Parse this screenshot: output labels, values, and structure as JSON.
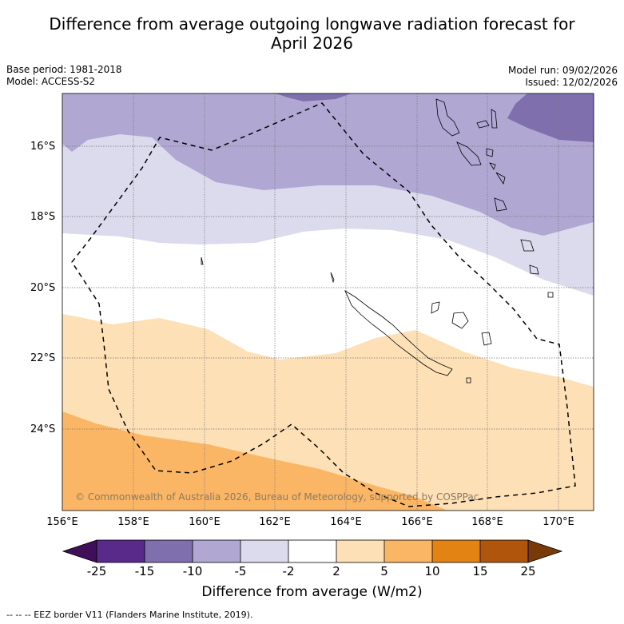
{
  "title_line1": "Difference from average outgoing longwave radiation forecast for",
  "title_line2": "April 2026",
  "base_period": "Base period: 1981-2018",
  "model": "Model: ACCESS-S2",
  "model_run": "Model run: 09/02/2026",
  "issued": "Issued: 12/02/2026",
  "copyright": "© Commonwealth of Australia 2026, Bureau of Meteorology, supported by COSPPac",
  "lat_labels": [
    "16°S",
    "18°S",
    "20°S",
    "22°S",
    "24°S"
  ],
  "lon_labels": [
    "156°E",
    "158°E",
    "160°E",
    "162°E",
    "164°E",
    "166°E",
    "168°E",
    "170°E"
  ],
  "colorbar": {
    "ticks": [
      "-25",
      "-15",
      "-10",
      "-5",
      "-2",
      "2",
      "5",
      "10",
      "15",
      "25"
    ],
    "colors": [
      "#3f0f5a",
      "#5a2a8a",
      "#7f6fad",
      "#b0a8d3",
      "#dbdbed",
      "#ffffff",
      "#fde0b6",
      "#fbb665",
      "#e38313",
      "#b0560c",
      "#7a3a08"
    ],
    "title": "Difference from average (W/m2)"
  },
  "footnote": "--  --  -- EEZ border V11 (Flanders Marine Institute, 2019)."
}
